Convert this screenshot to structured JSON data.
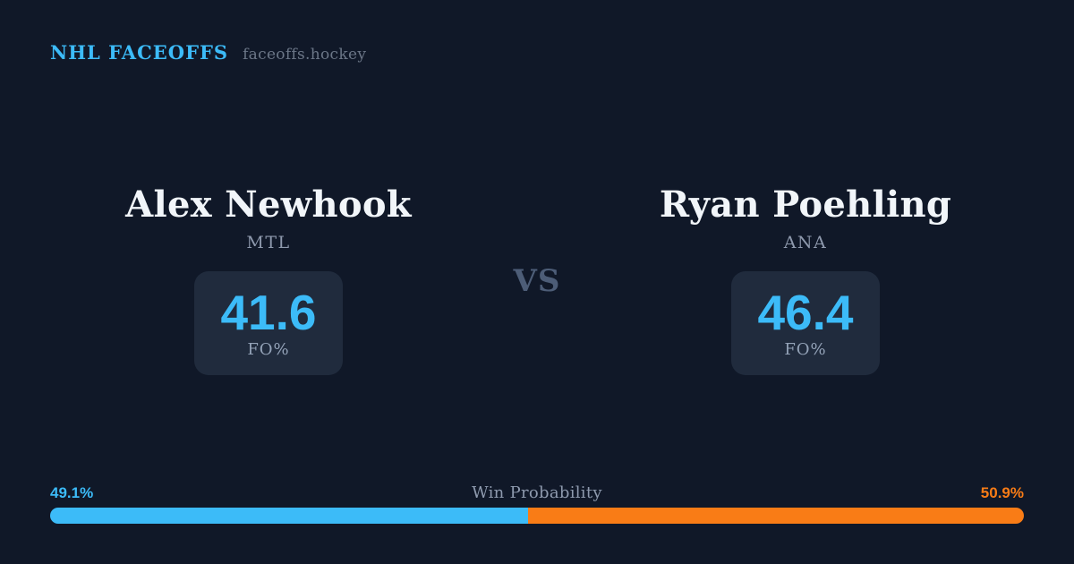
{
  "header": {
    "brand": "NHL FACEOFFS",
    "site": "faceoffs.hockey"
  },
  "matchup": {
    "vs_label": "VS",
    "left": {
      "name": "Alex Newhook",
      "team": "MTL",
      "stat_value": "41.6",
      "stat_label": "FO%"
    },
    "right": {
      "name": "Ryan Poehling",
      "team": "ANA",
      "stat_value": "46.4",
      "stat_label": "FO%"
    }
  },
  "win_probability": {
    "title": "Win Probability",
    "left_label": "49.1%",
    "right_label": "50.9%",
    "left_value": 49.1,
    "right_value": 50.9
  },
  "colors": {
    "background": "#101828",
    "card_surface": "#202b3d",
    "accent_blue": "#3cbbf8",
    "accent_orange": "#f97c16",
    "text_primary": "#f1f5f9",
    "text_muted": "#94a3b8",
    "text_dim": "#6b7687",
    "vs_text": "#4d5d77"
  },
  "chart_data": {
    "type": "bar",
    "title": "Win Probability",
    "categories": [
      "Alex Newhook (MTL)",
      "Ryan Poehling (ANA)"
    ],
    "series": [
      {
        "name": "Win Probability %",
        "values": [
          49.1,
          50.9
        ]
      },
      {
        "name": "Faceoff %",
        "values": [
          41.6,
          46.4
        ]
      }
    ],
    "layout": "horizontal stacked 100% bar at bottom; blue segment = left player share, orange segment = right player share; percent labels at bar ends",
    "legend": "off",
    "colors": [
      "#3cbbf8",
      "#f97c16"
    ]
  }
}
